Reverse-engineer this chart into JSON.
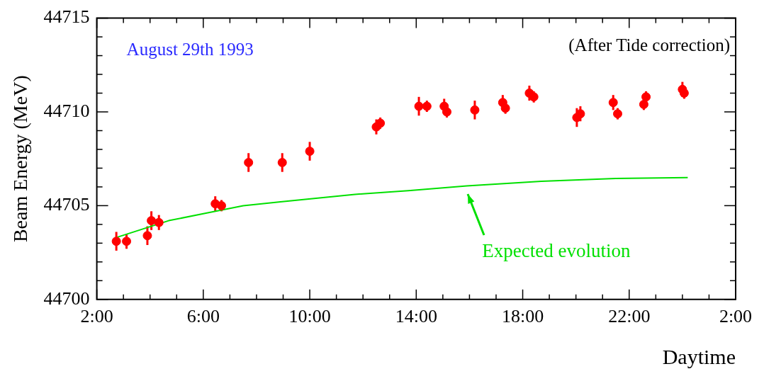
{
  "chart_data": {
    "type": "scatter",
    "xlabel": "Daytime",
    "ylabel": "Beam Energy (MeV)",
    "xlim": [
      "1993-08-29T02:00",
      "1993-08-30T02:00"
    ],
    "ylim": [
      44700,
      44715
    ],
    "xticks": [
      {
        "value": "1993-08-29T02:00",
        "label": "2:00"
      },
      {
        "value": "1993-08-29T03:00",
        "label": null
      },
      {
        "value": "1993-08-29T04:00",
        "label": null
      },
      {
        "value": "1993-08-29T05:00",
        "label": null
      },
      {
        "value": "1993-08-29T06:00",
        "label": "6:00"
      },
      {
        "value": "1993-08-29T07:00",
        "label": null
      },
      {
        "value": "1993-08-29T08:00",
        "label": null
      },
      {
        "value": "1993-08-29T09:00",
        "label": null
      },
      {
        "value": "1993-08-29T10:00",
        "label": "10:00"
      },
      {
        "value": "1993-08-29T11:00",
        "label": null
      },
      {
        "value": "1993-08-29T12:00",
        "label": null
      },
      {
        "value": "1993-08-29T13:00",
        "label": null
      },
      {
        "value": "1993-08-29T14:00",
        "label": "14:00"
      },
      {
        "value": "1993-08-29T15:00",
        "label": null
      },
      {
        "value": "1993-08-29T16:00",
        "label": null
      },
      {
        "value": "1993-08-29T17:00",
        "label": null
      },
      {
        "value": "1993-08-29T18:00",
        "label": "18:00"
      },
      {
        "value": "1993-08-29T19:00",
        "label": null
      },
      {
        "value": "1993-08-29T20:00",
        "label": null
      },
      {
        "value": "1993-08-29T21:00",
        "label": null
      },
      {
        "value": "1993-08-29T22:00",
        "label": "22:00"
      },
      {
        "value": "1993-08-29T23:00",
        "label": null
      },
      {
        "value": "1993-08-30T00:00",
        "label": null
      },
      {
        "value": "1993-08-30T01:00",
        "label": null
      },
      {
        "value": "1993-08-30T02:00",
        "label": "2:00"
      }
    ],
    "yticks": [
      44700,
      {
        "value": 44701,
        "label": null
      },
      {
        "value": 44702,
        "label": null
      },
      {
        "value": 44703,
        "label": null
      },
      {
        "value": 44704,
        "label": null
      },
      44705,
      {
        "value": 44706,
        "label": null
      },
      {
        "value": 44707,
        "label": null
      },
      {
        "value": 44708,
        "label": null
      },
      {
        "value": 44709,
        "label": null
      },
      44710,
      {
        "value": 44711,
        "label": null
      },
      {
        "value": 44712,
        "label": null
      },
      {
        "value": 44713,
        "label": null
      },
      {
        "value": 44714,
        "label": null
      },
      44715
    ],
    "marker": "circle",
    "grid": false,
    "legend": false,
    "series": [
      {
        "type": "scatter",
        "color": "#ff0000",
        "x": [
          "1993-08-29T02:44",
          "1993-08-29T03:07",
          "1993-08-29T03:54",
          "1993-08-29T04:03",
          "1993-08-29T04:20",
          "1993-08-29T06:27",
          "1993-08-29T06:41",
          "1993-08-29T07:42",
          "1993-08-29T08:58",
          "1993-08-29T10:00",
          "1993-08-29T12:30",
          "1993-08-29T12:39",
          "1993-08-29T14:06",
          "1993-08-29T14:24",
          "1993-08-29T15:03",
          "1993-08-29T15:09",
          "1993-08-29T16:12",
          "1993-08-29T17:15",
          "1993-08-29T17:21",
          "1993-08-29T18:15",
          "1993-08-29T18:25",
          "1993-08-29T20:02",
          "1993-08-29T20:10",
          "1993-08-29T21:24",
          "1993-08-29T21:34",
          "1993-08-29T22:33",
          "1993-08-29T22:38",
          "1993-08-30T00:00",
          "1993-08-30T00:04"
        ],
        "values": [
          44703.1,
          44703.1,
          44703.4,
          44704.2,
          44704.1,
          44705.1,
          44705.0,
          44707.3,
          44707.3,
          44707.9,
          44709.2,
          44709.4,
          44710.3,
          44710.3,
          44710.3,
          44710.0,
          44710.1,
          44710.5,
          44710.2,
          44711.0,
          44710.8,
          44709.7,
          44709.9,
          44710.5,
          44709.9,
          44710.4,
          44710.8,
          44711.2,
          44711.0
        ],
        "errors": [
          0.5,
          0.4,
          0.5,
          0.5,
          0.4,
          0.4,
          0.3,
          0.5,
          0.5,
          0.5,
          0.4,
          0.3,
          0.5,
          0.3,
          0.4,
          0.3,
          0.5,
          0.4,
          0.3,
          0.4,
          0.3,
          0.5,
          0.4,
          0.4,
          0.3,
          0.3,
          0.3,
          0.4,
          0.3
        ]
      },
      {
        "type": "line",
        "color": "#00e000",
        "marker": "none",
        "x": [
          "1993-08-29T02:44",
          "1993-08-29T04:42",
          "1993-08-29T06:06",
          "1993-08-29T07:30",
          "1993-08-29T08:54",
          "1993-08-29T10:18",
          "1993-08-29T11:42",
          "1993-08-29T13:42",
          "1993-08-29T15:54",
          "1993-08-29T18:42",
          "1993-08-29T21:30",
          "1993-08-30T00:12"
        ],
        "values": [
          44703.3,
          44704.2,
          44704.6,
          44705.0,
          44705.2,
          44705.4,
          44705.6,
          44705.8,
          44706.05,
          44706.3,
          44706.45,
          44706.5
        ]
      }
    ],
    "annotations": [
      "August 29th 1993",
      "(After Tide correction)",
      {
        "text": "Expected evolution",
        "x": "1993-08-29T15:48",
        "y": 44706.0
      }
    ]
  }
}
